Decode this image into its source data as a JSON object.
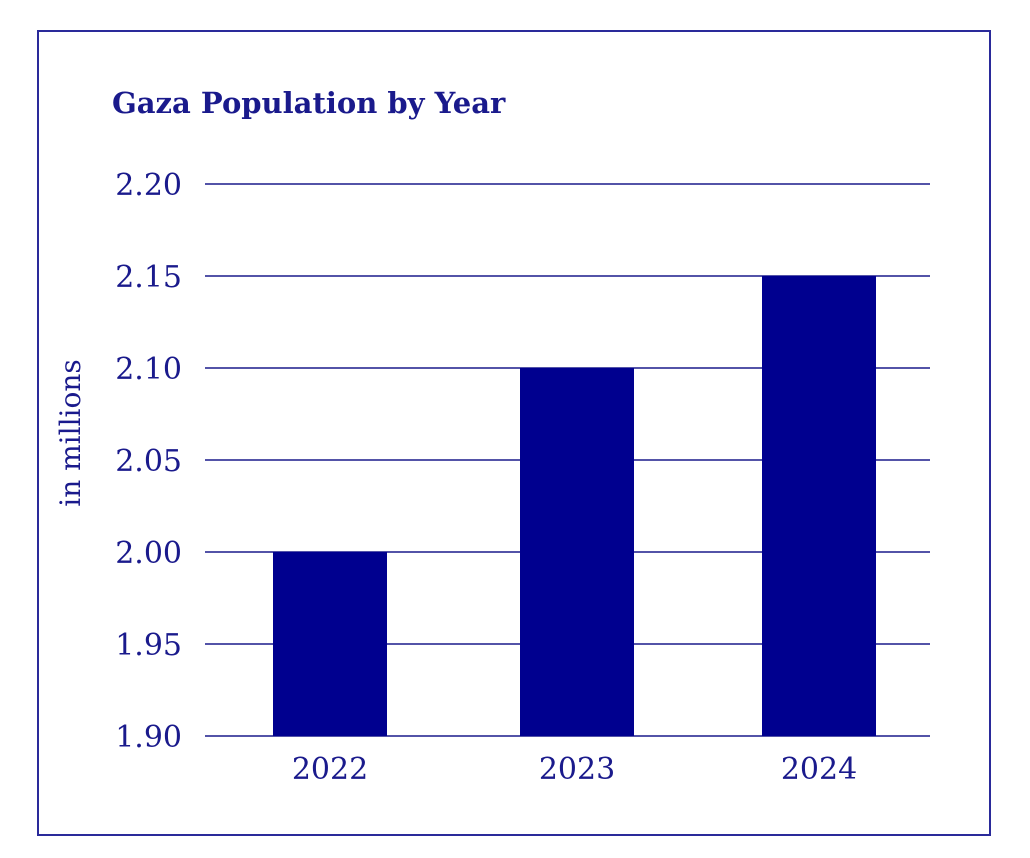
{
  "colors": {
    "bar": "#00008f",
    "text": "#1a1a8c",
    "grid": "#1a1a8c",
    "frame": "#2a2a9a"
  },
  "chart_data": {
    "type": "bar",
    "title": "Gaza Population by Year",
    "xlabel": "",
    "ylabel": "in millions",
    "categories": [
      "2022",
      "2023",
      "2024"
    ],
    "values": [
      2.0,
      2.1,
      2.15
    ],
    "ylim": [
      1.9,
      2.2
    ],
    "yticks": [
      "1.90",
      "1.95",
      "2.00",
      "2.05",
      "2.10",
      "2.15",
      "2.20"
    ],
    "grid": true,
    "legend": "none"
  }
}
